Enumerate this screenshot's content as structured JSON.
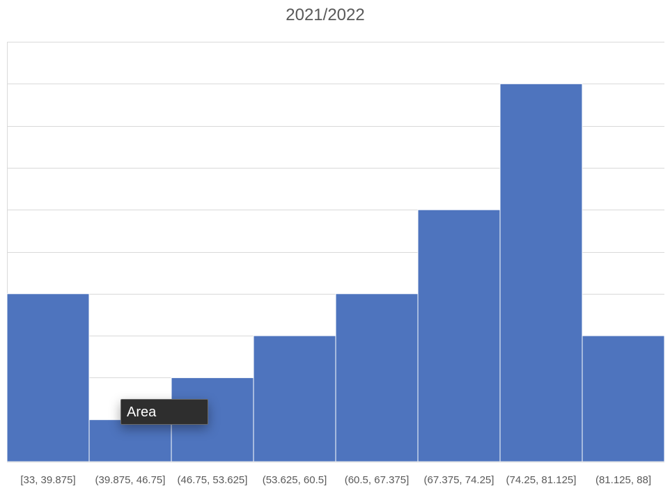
{
  "tooltip": {
    "label": "Area"
  },
  "chart_data": {
    "type": "bar",
    "title": "2021/2022",
    "categories": [
      "[33, 39.875]",
      "(39.875, 46.75]",
      "(46.75, 53.625]",
      "(53.625, 60.5]",
      "(60.5, 67.375]",
      "(67.375, 74.25]",
      "(74.25, 81.125]",
      "(81.125, 88]"
    ],
    "values": [
      4,
      1,
      2,
      3,
      4,
      6,
      9,
      3
    ],
    "ylim": [
      0,
      10
    ],
    "y_tick_step": 1,
    "grid": true,
    "bar_color": "#4e74be",
    "grid_color": "#d9d9d9",
    "label_color": "#595959"
  }
}
